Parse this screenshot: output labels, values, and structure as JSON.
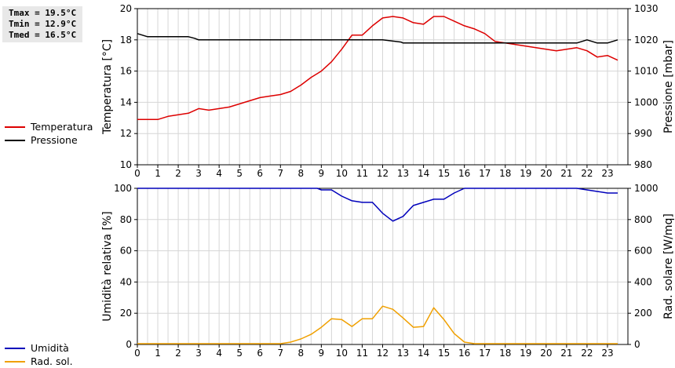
{
  "stats": [
    "Tmax = 19.5°C",
    "Tmin = 12.9°C",
    "Tmed = 16.5°C"
  ],
  "chart_data": [
    {
      "type": "line",
      "title": "",
      "xlabel": "",
      "xlim": [
        0,
        24
      ],
      "xticks": [
        "0",
        "1",
        "2",
        "3",
        "4",
        "5",
        "6",
        "7",
        "8",
        "9",
        "10",
        "11",
        "12",
        "13",
        "14",
        "15",
        "16",
        "17",
        "18",
        "19",
        "20",
        "21",
        "22",
        "23"
      ],
      "ylabel": "Temperatura [°C]",
      "ylim": [
        10,
        20
      ],
      "yticks": [
        "10",
        "12",
        "14",
        "16",
        "18",
        "20"
      ],
      "y2label": "Pressione [mbar]",
      "y2lim": [
        980,
        1030
      ],
      "y2ticks": [
        "980",
        "990",
        "1000",
        "1010",
        "1020",
        "1030"
      ],
      "grid": true,
      "legend": "left",
      "series": [
        {
          "name": "Temperatura",
          "axis": "left",
          "color": "#dd0000",
          "x": [
            0,
            0.5,
            1,
            1.5,
            2,
            2.5,
            3,
            3.5,
            4,
            4.5,
            5,
            5.5,
            6,
            6.5,
            7,
            7.5,
            8,
            8.5,
            9,
            9.5,
            10,
            10.5,
            11,
            11.5,
            12,
            12.5,
            13,
            13.5,
            14,
            14.5,
            15,
            15.5,
            16,
            16.5,
            17,
            17.5,
            18,
            18.5,
            19,
            19.5,
            20,
            20.5,
            21,
            21.5,
            22,
            22.5,
            23,
            23.5
          ],
          "values": [
            12.9,
            12.9,
            12.9,
            13.1,
            13.2,
            13.3,
            13.6,
            13.5,
            13.6,
            13.7,
            13.9,
            14.1,
            14.3,
            14.4,
            14.5,
            14.7,
            15.1,
            15.6,
            16.0,
            16.6,
            17.4,
            18.3,
            18.3,
            18.9,
            19.4,
            19.5,
            19.4,
            19.1,
            19.0,
            19.5,
            19.5,
            19.2,
            18.9,
            18.7,
            18.4,
            17.9,
            17.8,
            17.7,
            17.6,
            17.5,
            17.4,
            17.3,
            17.4,
            17.5,
            17.3,
            16.9,
            17.0,
            16.7
          ]
        },
        {
          "name": "Pressione",
          "axis": "right",
          "color": "#000000",
          "x": [
            0,
            0.5,
            1,
            1.5,
            2,
            2.5,
            2.8,
            3,
            4,
            5,
            6,
            7,
            8,
            9,
            10,
            11,
            12,
            12.9,
            13,
            14,
            15,
            16,
            17,
            18,
            19,
            20,
            21,
            21.5,
            22,
            22.5,
            23,
            23.5
          ],
          "values": [
            1022,
            1021,
            1021,
            1021,
            1021,
            1021,
            1020.5,
            1020,
            1020,
            1020,
            1020,
            1020,
            1020,
            1020,
            1020,
            1020,
            1020,
            1019.3,
            1019,
            1019,
            1019,
            1019,
            1019,
            1019,
            1019,
            1019,
            1019,
            1019,
            1020,
            1019,
            1019,
            1020
          ]
        }
      ]
    },
    {
      "type": "line",
      "title": "",
      "xlabel": "",
      "xlim": [
        0,
        24
      ],
      "xticks": [
        "0",
        "1",
        "2",
        "3",
        "4",
        "5",
        "6",
        "7",
        "8",
        "9",
        "10",
        "11",
        "12",
        "13",
        "14",
        "15",
        "16",
        "17",
        "18",
        "19",
        "20",
        "21",
        "22",
        "23"
      ],
      "ylabel": "Umidità relativa [%]",
      "ylim": [
        0,
        100
      ],
      "yticks": [
        "0",
        "20",
        "40",
        "60",
        "80",
        "100"
      ],
      "y2label": "Rad. solare [W/mq]",
      "y2lim": [
        0,
        1000
      ],
      "y2ticks": [
        "0",
        "200",
        "400",
        "600",
        "800",
        "1000"
      ],
      "grid": true,
      "legend": "left",
      "series": [
        {
          "name": "Umidità",
          "axis": "left",
          "color": "#0000bb",
          "x": [
            0,
            1,
            2,
            3,
            4,
            5,
            6,
            7,
            8,
            8.8,
            9,
            9.5,
            10,
            10.5,
            11,
            11.5,
            12,
            12.5,
            13,
            13.5,
            14,
            14.5,
            15,
            15.5,
            16,
            16.5,
            17,
            18,
            19,
            20,
            21,
            21.5,
            22,
            22.5,
            23,
            23.5
          ],
          "values": [
            100,
            100,
            100,
            100,
            100,
            100,
            100,
            100,
            100,
            100,
            99,
            99,
            95,
            92,
            91,
            91,
            84,
            79,
            82,
            89,
            91,
            93,
            93,
            97,
            100,
            100,
            100,
            100,
            100,
            100,
            100,
            100,
            99,
            98,
            97,
            97
          ]
        },
        {
          "name": "Rad. sol.",
          "axis": "right",
          "color": "#f0a000",
          "x": [
            0,
            1,
            2,
            3,
            4,
            5,
            6,
            7,
            7.5,
            8,
            8.5,
            9,
            9.5,
            10,
            10.5,
            11,
            11.5,
            12,
            12.5,
            13,
            13.5,
            14,
            14.5,
            15,
            15.5,
            16,
            16.5,
            17,
            18,
            19,
            20,
            21,
            22,
            23,
            23.5
          ],
          "values": [
            5,
            5,
            5,
            5,
            5,
            5,
            5,
            5,
            15,
            35,
            65,
            110,
            165,
            160,
            115,
            165,
            165,
            245,
            225,
            170,
            110,
            115,
            235,
            160,
            70,
            15,
            5,
            5,
            5,
            5,
            5,
            5,
            5,
            5,
            5
          ]
        }
      ]
    }
  ]
}
